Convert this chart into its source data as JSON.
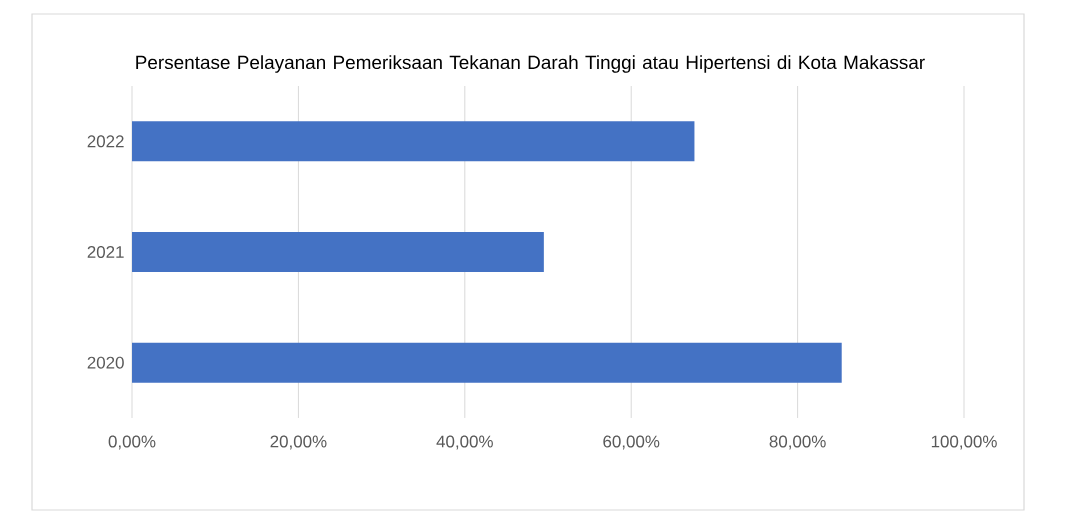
{
  "chart_data": {
    "type": "bar",
    "orientation": "horizontal",
    "title": "Persentase Pelayanan Pemeriksaan Tekanan Darah Tinggi atau Hipertensi di Kota Makassar",
    "categories": [
      "2022",
      "2021",
      "2020"
    ],
    "values": [
      67.6,
      49.5,
      85.3
    ],
    "color": "#4472c4",
    "xlim": [
      0,
      100
    ],
    "xticks": [
      {
        "value": 0,
        "label": "0,00%"
      },
      {
        "value": 20,
        "label": "20,00%"
      },
      {
        "value": 40,
        "label": "40,00%"
      },
      {
        "value": 60,
        "label": "60,00%"
      },
      {
        "value": 80,
        "label": "80,00%"
      },
      {
        "value": 100,
        "label": "100,00%"
      }
    ],
    "grid": "x"
  }
}
